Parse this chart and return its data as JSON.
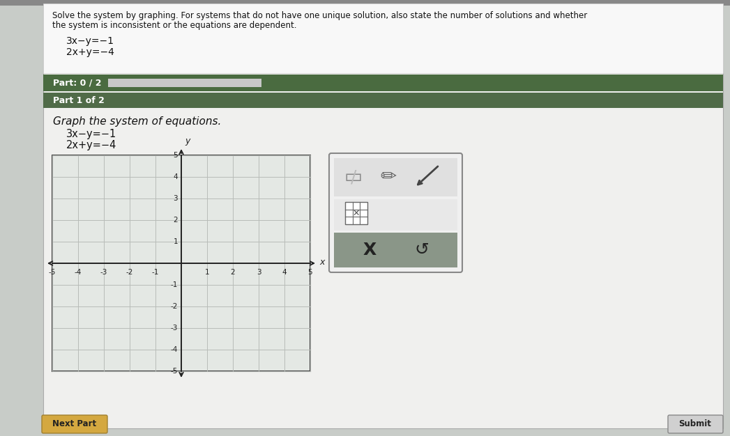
{
  "bg_color": "#c8ccc8",
  "content_bg": "#f0f0ee",
  "header_bg": "#f0f0ee",
  "header_text_line1": "Solve the system by graphing. For systems that do not have one unique solution, also state the number of solutions and whether",
  "header_text_line2": "the system is inconsistent or the equations are dependent.",
  "eq1": "3x−y=−1",
  "eq2": "2x+y=−4",
  "part_bar_bg": "#4a6b40",
  "part_bar_text": "Part: 0 / 2",
  "part1_bar_bg": "#506b48",
  "part1_bar_text": "Part 1 of 2",
  "graph_instruction": "Graph the system of equations.",
  "eq1_display": "3x−y=−1",
  "eq2_display": "2x+y=−4",
  "axis_min": -5,
  "axis_max": 5,
  "grid_color": "#b8bcb8",
  "axis_color": "#222222",
  "graph_bg": "#e4e8e4",
  "graph_border": "#444444",
  "next_part_btn_color": "#d4a840",
  "next_part_btn_text": "Next Part",
  "submit_btn_color": "#d0d0d0",
  "submit_btn_text": "Submit",
  "progress_bar_fill": "#e0e0e0",
  "progress_bar_bg": "#e0e0e0",
  "tool_panel_bg": "#f0f0f0",
  "tool_panel_border": "#888888",
  "tool_bottom_bg": "#8a9688"
}
